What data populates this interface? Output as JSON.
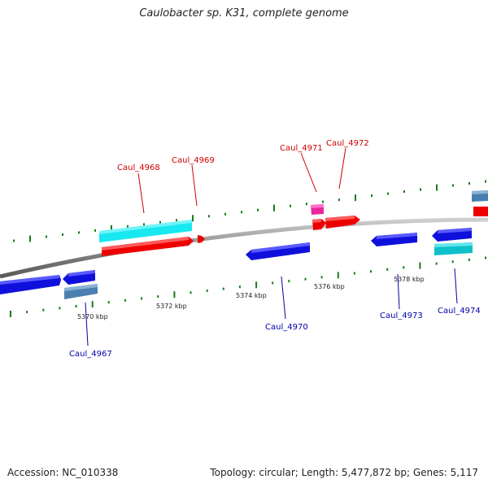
{
  "title": "Caulobacter sp. K31, complete genome",
  "accession_text": "Accession: NC_010338",
  "topology_text": "Topology: circular; Length: 5,477,872 bp; Genes: 5,117",
  "colors": {
    "backbone": "#888888",
    "tick": "#1a7a1a",
    "forward_label": "#cc0000",
    "reverse_label": "#0000aa",
    "red": "#ee0000",
    "blue": "#1010dd",
    "cyan": "#18e8f0",
    "steel": "#4a7fb0",
    "teal": "#10c0c8",
    "magenta": "#e8289c"
  },
  "kbp_labels": [
    "5370 kbp",
    "5372 kbp",
    "5374 kbp",
    "5376 kbp",
    "5378 kbp"
  ],
  "gene_labels": [
    {
      "text": "Caul_4967",
      "strand": "reverse"
    },
    {
      "text": "Caul_4968",
      "strand": "forward"
    },
    {
      "text": "Caul_4969",
      "strand": "forward"
    },
    {
      "text": "Caul_4970",
      "strand": "reverse"
    },
    {
      "text": "Caul_4971",
      "strand": "forward"
    },
    {
      "text": "Caul_4972",
      "strand": "forward"
    },
    {
      "text": "Caul_4973",
      "strand": "reverse"
    },
    {
      "text": "Caul_4974",
      "strand": "reverse"
    }
  ]
}
